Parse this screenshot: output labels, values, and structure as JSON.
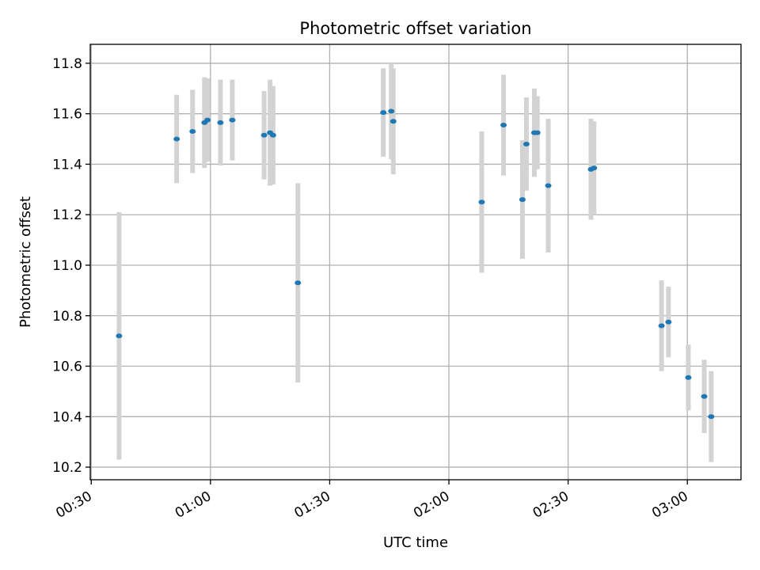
{
  "chart_data": {
    "type": "scatter",
    "title": "Photometric offset variation",
    "xlabel": "UTC time",
    "ylabel": "Photometric offset",
    "x_ticks": [
      "00:30",
      "01:00",
      "01:30",
      "02:00",
      "02:30",
      "03:00"
    ],
    "y_ticks": [
      "10.2",
      "10.4",
      "10.6",
      "10.8",
      "11.0",
      "11.2",
      "11.4",
      "11.6",
      "11.8"
    ],
    "xlim": [
      "00:29:45",
      "03:13:30"
    ],
    "ylim": [
      10.15,
      11.875
    ],
    "grid": true,
    "colors": {
      "points": "#1f77b4",
      "errorbars": "#d3d3d3",
      "grid": "#b0b0b0"
    },
    "points": [
      {
        "time": "00:37:00",
        "y": 10.72,
        "err": 0.49
      },
      {
        "time": "00:51:30",
        "y": 11.5,
        "err": 0.175
      },
      {
        "time": "00:55:30",
        "y": 11.53,
        "err": 0.165
      },
      {
        "time": "00:58:30",
        "y": 11.565,
        "err": 0.18
      },
      {
        "time": "00:59:15",
        "y": 11.575,
        "err": 0.165
      },
      {
        "time": "01:02:30",
        "y": 11.565,
        "err": 0.17
      },
      {
        "time": "01:05:30",
        "y": 11.575,
        "err": 0.16
      },
      {
        "time": "01:13:30",
        "y": 11.515,
        "err": 0.175
      },
      {
        "time": "01:15:00",
        "y": 11.525,
        "err": 0.21
      },
      {
        "time": "01:15:45",
        "y": 11.515,
        "err": 0.195
      },
      {
        "time": "01:22:00",
        "y": 10.93,
        "err": 0.395
      },
      {
        "time": "01:43:30",
        "y": 11.605,
        "err": 0.175
      },
      {
        "time": "01:45:30",
        "y": 11.61,
        "err": 0.19
      },
      {
        "time": "01:46:00",
        "y": 11.57,
        "err": 0.21
      },
      {
        "time": "02:08:15",
        "y": 11.25,
        "err": 0.28
      },
      {
        "time": "02:13:45",
        "y": 11.555,
        "err": 0.2
      },
      {
        "time": "02:18:30",
        "y": 11.26,
        "err": 0.235
      },
      {
        "time": "02:19:30",
        "y": 11.48,
        "err": 0.185
      },
      {
        "time": "02:21:30",
        "y": 11.525,
        "err": 0.175
      },
      {
        "time": "02:22:15",
        "y": 11.525,
        "err": 0.145
      },
      {
        "time": "02:25:00",
        "y": 11.315,
        "err": 0.265
      },
      {
        "time": "02:35:45",
        "y": 11.38,
        "err": 0.2
      },
      {
        "time": "02:36:30",
        "y": 11.385,
        "err": 0.185
      },
      {
        "time": "02:53:30",
        "y": 10.76,
        "err": 0.18
      },
      {
        "time": "02:55:15",
        "y": 10.775,
        "err": 0.14
      },
      {
        "time": "03:00:15",
        "y": 10.555,
        "err": 0.13
      },
      {
        "time": "03:04:15",
        "y": 10.48,
        "err": 0.145
      },
      {
        "time": "03:06:00",
        "y": 10.4,
        "err": 0.18
      }
    ]
  }
}
